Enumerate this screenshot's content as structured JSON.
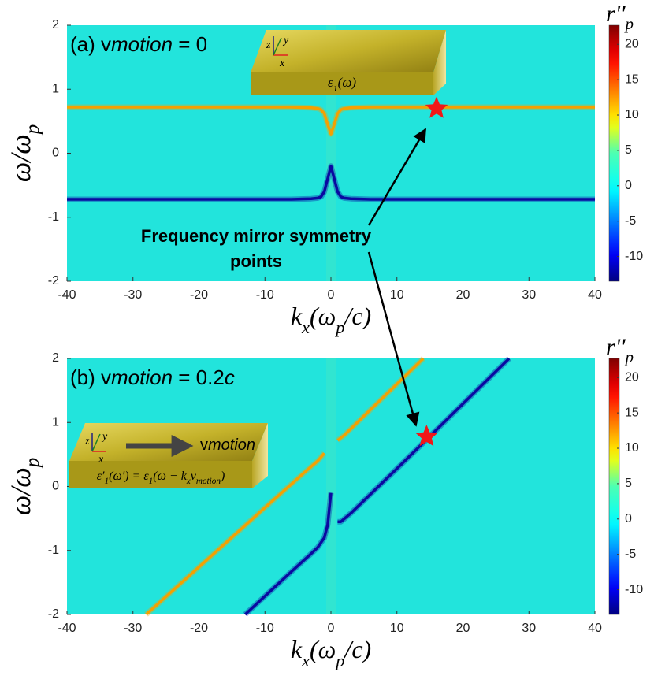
{
  "chart_data": [
    {
      "type": "heatmap",
      "title": [
        "(a) v",
        "motion",
        " = 0"
      ],
      "xlabel": [
        "k",
        "x",
        "(ω",
        "p",
        "/c)"
      ],
      "ylabel": [
        "ω/ω",
        "p"
      ],
      "xlim": [
        -40,
        40
      ],
      "ylim": [
        -2,
        2
      ],
      "xticks": [
        -40,
        -30,
        -20,
        -10,
        0,
        10,
        20,
        30,
        40
      ],
      "yticks": [
        -2,
        -1,
        0,
        1,
        2
      ],
      "background": "#22e4dc",
      "colormap": "jet",
      "clim": [
        -13.5,
        22.7
      ],
      "cticks": [
        -10,
        -5,
        0,
        5,
        10,
        15,
        20
      ],
      "colorbar_label": [
        "r''",
        "p"
      ],
      "series": [
        {
          "color": "#f5a000",
          "x": [
            -40,
            -6,
            -3,
            -2,
            -1.5,
            -1,
            -0.5,
            0,
            0.5,
            1,
            1.5,
            2,
            3,
            6,
            40
          ],
          "values": [
            0.72,
            0.72,
            0.71,
            0.7,
            0.68,
            0.62,
            0.45,
            0.3,
            0.45,
            0.62,
            0.68,
            0.7,
            0.71,
            0.72,
            0.72
          ]
        },
        {
          "color": "#0a0aa0",
          "x": [
            -40,
            -6,
            -3,
            -2,
            -1.5,
            -1,
            -0.5,
            0,
            0.5,
            1,
            1.5,
            2,
            3,
            6,
            40
          ],
          "values": [
            -0.72,
            -0.72,
            -0.71,
            -0.7,
            -0.68,
            -0.6,
            -0.4,
            -0.2,
            -0.4,
            -0.6,
            -0.68,
            -0.7,
            -0.71,
            -0.72,
            -0.72
          ]
        }
      ],
      "star": {
        "x": 16,
        "y": 0.7,
        "color": "#f01818"
      },
      "inset": {
        "axes": [
          "x",
          "y",
          "z"
        ],
        "label": [
          "ε",
          "1",
          "(ω)"
        ]
      }
    },
    {
      "type": "heatmap",
      "title": [
        "(b) v",
        "motion",
        " = 0.2",
        "c"
      ],
      "xlabel": [
        "k",
        "x",
        "(ω",
        "p",
        "/c)"
      ],
      "ylabel": [
        "ω/ω",
        "p"
      ],
      "xlim": [
        -40,
        40
      ],
      "ylim": [
        -2,
        2
      ],
      "xticks": [
        -40,
        -30,
        -20,
        -10,
        0,
        10,
        20,
        30,
        40
      ],
      "yticks": [
        -2,
        -1,
        0,
        1,
        2
      ],
      "background": "#22e4dc",
      "colormap": "jet",
      "clim": [
        -13.5,
        22.7
      ],
      "cticks": [
        -10,
        -5,
        0,
        5,
        10,
        15,
        20
      ],
      "colorbar_label": [
        "r''",
        "p"
      ],
      "series": [
        {
          "color": "#f5a000",
          "x": [
            -28,
            -10,
            -4,
            -2,
            -1,
            0,
            1,
            2,
            6,
            14
          ],
          "values": [
            -2,
            -0.33,
            0.22,
            0.4,
            0.52,
            null,
            0.72,
            0.8,
            1.2,
            2
          ]
        },
        {
          "color": "#0a0aa0",
          "x": [
            -13,
            -6,
            -3,
            -2,
            -1,
            -0.5,
            0,
            0.5,
            1,
            1.5,
            3,
            10,
            27
          ],
          "values": [
            -2,
            -1.33,
            -1.05,
            -0.95,
            -0.8,
            -0.6,
            -0.1,
            null,
            -0.55,
            -0.55,
            -0.42,
            0.28,
            2
          ]
        }
      ],
      "star": {
        "x": 14.5,
        "y": 0.78,
        "color": "#f01818"
      },
      "inset": {
        "axes": [
          "x",
          "y",
          "z"
        ],
        "velocity": [
          "v",
          "motion"
        ],
        "label": [
          "ε′",
          "1",
          "(ω′) = ε",
          "1",
          "(ω − k",
          "x",
          "v",
          "motion",
          ")"
        ]
      }
    }
  ],
  "annotation": [
    "Frequency mirror symmetry",
    "points"
  ]
}
